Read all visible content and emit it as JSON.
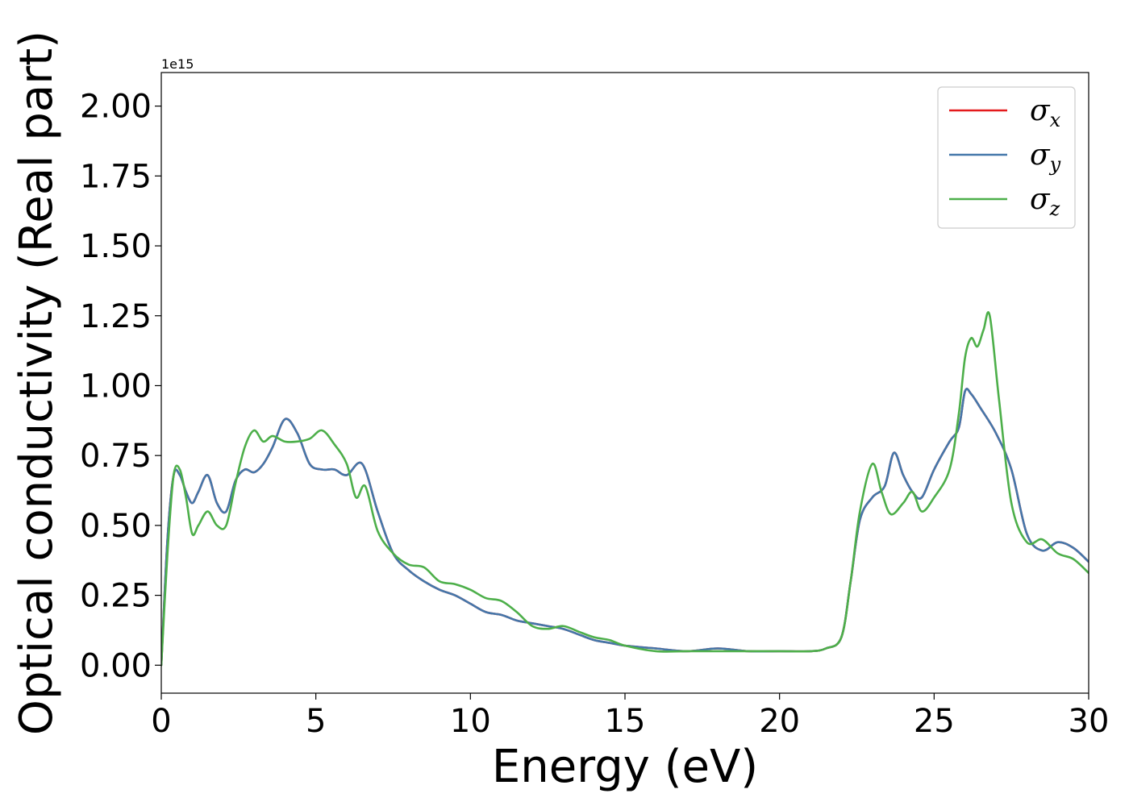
{
  "chart_data": {
    "type": "line",
    "title": "",
    "xlabel": "Energy (eV)",
    "ylabel": "Optical conductivity (Real part)",
    "y_offset_label": "1e15",
    "xlim": [
      0,
      30
    ],
    "ylim": [
      -0.1,
      2.12
    ],
    "x_ticks": [
      0,
      5,
      10,
      15,
      20,
      25,
      30
    ],
    "x_tick_labels": [
      "0",
      "5",
      "10",
      "15",
      "20",
      "25",
      "30"
    ],
    "y_ticks": [
      0.0,
      0.25,
      0.5,
      0.75,
      1.0,
      1.25,
      1.5,
      1.75,
      2.0
    ],
    "y_tick_labels": [
      "0.00",
      "0.25",
      "0.50",
      "0.75",
      "1.00",
      "1.25",
      "1.50",
      "1.75",
      "2.00"
    ],
    "grid": false,
    "legend_position": "top-right",
    "series": [
      {
        "name": "σx",
        "legend_base": "σ",
        "legend_sub": "x",
        "color": "#e41a1c",
        "x": [
          0,
          0.2,
          0.4,
          0.6,
          0.8,
          1.0,
          1.2,
          1.5,
          1.8,
          2.1,
          2.4,
          2.7,
          3.0,
          3.3,
          3.6,
          4.0,
          4.4,
          4.8,
          5.2,
          5.6,
          6.0,
          6.5,
          7.0,
          7.5,
          8.0,
          8.5,
          9.0,
          9.5,
          10.0,
          10.5,
          11.0,
          11.5,
          12.0,
          12.5,
          13.0,
          13.5,
          14.0,
          14.5,
          15.0,
          16.0,
          17.0,
          18.0,
          19.0,
          20.0,
          21.0,
          21.5,
          22.0,
          22.3,
          22.6,
          23.0,
          23.4,
          23.7,
          24.0,
          24.3,
          24.6,
          25.0,
          25.5,
          25.8,
          26.0,
          26.2,
          26.5,
          27.0,
          27.5,
          28.0,
          28.5,
          29.0,
          29.5,
          30.0
        ],
        "y": [
          0.0,
          0.45,
          0.68,
          0.68,
          0.62,
          0.58,
          0.62,
          0.68,
          0.58,
          0.55,
          0.66,
          0.7,
          0.69,
          0.72,
          0.78,
          0.88,
          0.83,
          0.72,
          0.7,
          0.7,
          0.68,
          0.72,
          0.55,
          0.4,
          0.34,
          0.3,
          0.27,
          0.25,
          0.22,
          0.19,
          0.18,
          0.16,
          0.15,
          0.14,
          0.13,
          0.11,
          0.09,
          0.08,
          0.07,
          0.06,
          0.05,
          0.06,
          0.05,
          0.05,
          0.05,
          0.06,
          0.1,
          0.3,
          0.52,
          0.6,
          0.64,
          0.76,
          0.68,
          0.62,
          0.6,
          0.7,
          0.8,
          0.85,
          0.98,
          0.97,
          0.92,
          0.83,
          0.7,
          0.47,
          0.41,
          0.44,
          0.42,
          0.37
        ]
      },
      {
        "name": "σy",
        "legend_base": "σ",
        "legend_sub": "y",
        "color": "#4477aa",
        "x": [
          0,
          0.2,
          0.4,
          0.6,
          0.8,
          1.0,
          1.2,
          1.5,
          1.8,
          2.1,
          2.4,
          2.7,
          3.0,
          3.3,
          3.6,
          4.0,
          4.4,
          4.8,
          5.2,
          5.6,
          6.0,
          6.5,
          7.0,
          7.5,
          8.0,
          8.5,
          9.0,
          9.5,
          10.0,
          10.5,
          11.0,
          11.5,
          12.0,
          12.5,
          13.0,
          13.5,
          14.0,
          14.5,
          15.0,
          16.0,
          17.0,
          18.0,
          19.0,
          20.0,
          21.0,
          21.5,
          22.0,
          22.3,
          22.6,
          23.0,
          23.4,
          23.7,
          24.0,
          24.3,
          24.6,
          25.0,
          25.5,
          25.8,
          26.0,
          26.2,
          26.5,
          27.0,
          27.5,
          28.0,
          28.5,
          29.0,
          29.5,
          30.0
        ],
        "y": [
          0.0,
          0.45,
          0.68,
          0.68,
          0.62,
          0.58,
          0.62,
          0.68,
          0.58,
          0.55,
          0.66,
          0.7,
          0.69,
          0.72,
          0.78,
          0.88,
          0.83,
          0.72,
          0.7,
          0.7,
          0.68,
          0.72,
          0.55,
          0.4,
          0.34,
          0.3,
          0.27,
          0.25,
          0.22,
          0.19,
          0.18,
          0.16,
          0.15,
          0.14,
          0.13,
          0.11,
          0.09,
          0.08,
          0.07,
          0.06,
          0.05,
          0.06,
          0.05,
          0.05,
          0.05,
          0.06,
          0.1,
          0.3,
          0.52,
          0.6,
          0.64,
          0.76,
          0.68,
          0.62,
          0.6,
          0.7,
          0.8,
          0.85,
          0.98,
          0.97,
          0.92,
          0.83,
          0.7,
          0.47,
          0.41,
          0.44,
          0.42,
          0.37
        ]
      },
      {
        "name": "σz",
        "legend_base": "σ",
        "legend_sub": "z",
        "color": "#4daf4a",
        "x": [
          0,
          0.2,
          0.4,
          0.6,
          0.8,
          1.0,
          1.2,
          1.5,
          1.8,
          2.1,
          2.4,
          2.7,
          3.0,
          3.3,
          3.6,
          4.0,
          4.4,
          4.8,
          5.2,
          5.6,
          6.0,
          6.3,
          6.6,
          7.0,
          7.5,
          8.0,
          8.5,
          9.0,
          9.5,
          10.0,
          10.5,
          11.0,
          11.5,
          12.0,
          12.5,
          13.0,
          13.5,
          14.0,
          14.5,
          15.0,
          16.0,
          17.0,
          18.0,
          19.0,
          20.0,
          21.0,
          21.5,
          22.0,
          22.3,
          22.6,
          23.0,
          23.3,
          23.6,
          24.0,
          24.3,
          24.6,
          25.0,
          25.5,
          25.8,
          26.0,
          26.2,
          26.4,
          26.6,
          26.8,
          27.1,
          27.5,
          28.0,
          28.5,
          29.0,
          29.5,
          30.0
        ],
        "y": [
          0.0,
          0.4,
          0.68,
          0.7,
          0.6,
          0.47,
          0.5,
          0.55,
          0.5,
          0.5,
          0.65,
          0.78,
          0.84,
          0.8,
          0.82,
          0.8,
          0.8,
          0.81,
          0.84,
          0.79,
          0.72,
          0.6,
          0.64,
          0.48,
          0.4,
          0.36,
          0.35,
          0.3,
          0.29,
          0.27,
          0.24,
          0.23,
          0.19,
          0.14,
          0.13,
          0.14,
          0.12,
          0.1,
          0.09,
          0.07,
          0.05,
          0.05,
          0.05,
          0.05,
          0.05,
          0.05,
          0.06,
          0.1,
          0.3,
          0.55,
          0.72,
          0.62,
          0.54,
          0.58,
          0.62,
          0.55,
          0.6,
          0.7,
          0.9,
          1.1,
          1.17,
          1.14,
          1.2,
          1.25,
          0.95,
          0.58,
          0.44,
          0.45,
          0.4,
          0.38,
          0.33
        ]
      }
    ]
  }
}
